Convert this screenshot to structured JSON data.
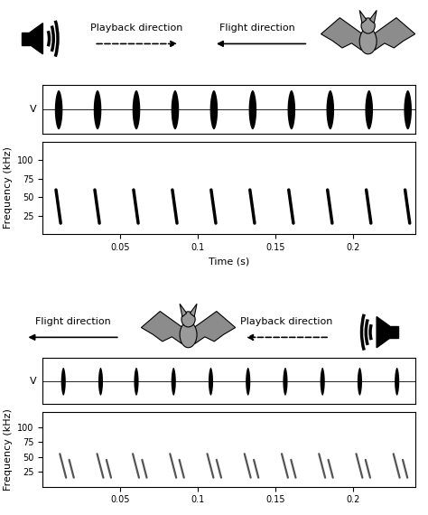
{
  "chart_data": [
    {
      "type": "waveform",
      "ylabel": "V",
      "tick_labels": false,
      "xlim": [
        0,
        0.24
      ],
      "ylim": [
        -1,
        1
      ],
      "color": "#000000",
      "annotations": [
        {
          "text": "Playback direction",
          "line_style": "dashed"
        },
        {
          "text": "Flight direction",
          "line_style": "solid"
        }
      ],
      "pulses": [
        {
          "time": 0.01,
          "duration": 0.005,
          "amplitude": 0.8
        },
        {
          "time": 0.035,
          "duration": 0.005,
          "amplitude": 0.8
        },
        {
          "time": 0.06,
          "duration": 0.005,
          "amplitude": 0.8
        },
        {
          "time": 0.085,
          "duration": 0.005,
          "amplitude": 0.8
        },
        {
          "time": 0.11,
          "duration": 0.005,
          "amplitude": 0.8
        },
        {
          "time": 0.135,
          "duration": 0.005,
          "amplitude": 0.8
        },
        {
          "time": 0.16,
          "duration": 0.005,
          "amplitude": 0.8
        },
        {
          "time": 0.185,
          "duration": 0.005,
          "amplitude": 0.8
        },
        {
          "time": 0.21,
          "duration": 0.005,
          "amplitude": 0.8
        },
        {
          "time": 0.235,
          "duration": 0.005,
          "amplitude": 0.8
        }
      ]
    },
    {
      "type": "spectrogram",
      "ylabel": "Frequency (kHz)",
      "xlabel": "Time (s)",
      "xlim": [
        0,
        0.24
      ],
      "ylim": [
        0,
        125
      ],
      "xticks": [
        0.05,
        0.1,
        0.15,
        0.2
      ],
      "yticks": [
        25,
        50,
        75,
        100
      ],
      "color": "#000000",
      "calls": [
        {
          "start_time": 0.0085,
          "end_time": 0.0115,
          "start_freq": 60,
          "end_freq": 15
        },
        {
          "start_time": 0.0335,
          "end_time": 0.0365,
          "start_freq": 60,
          "end_freq": 15
        },
        {
          "start_time": 0.0585,
          "end_time": 0.0615,
          "start_freq": 60,
          "end_freq": 15
        },
        {
          "start_time": 0.0835,
          "end_time": 0.0865,
          "start_freq": 60,
          "end_freq": 15
        },
        {
          "start_time": 0.1085,
          "end_time": 0.1115,
          "start_freq": 60,
          "end_freq": 15
        },
        {
          "start_time": 0.1335,
          "end_time": 0.1365,
          "start_freq": 60,
          "end_freq": 15
        },
        {
          "start_time": 0.1585,
          "end_time": 0.1615,
          "start_freq": 60,
          "end_freq": 15
        },
        {
          "start_time": 0.1835,
          "end_time": 0.1865,
          "start_freq": 60,
          "end_freq": 15
        },
        {
          "start_time": 0.2085,
          "end_time": 0.2115,
          "start_freq": 60,
          "end_freq": 15
        },
        {
          "start_time": 0.2335,
          "end_time": 0.2365,
          "start_freq": 60,
          "end_freq": 15
        }
      ]
    },
    {
      "type": "waveform",
      "ylabel": "V",
      "tick_labels": false,
      "xlim": [
        0,
        0.24
      ],
      "ylim": [
        -1,
        1
      ],
      "color": "#000000",
      "annotations": [
        {
          "text": "Flight direction",
          "line_style": "solid"
        },
        {
          "text": "Playback direction",
          "line_style": "dashed"
        }
      ],
      "pulses": [
        {
          "time": 0.013,
          "duration": 0.003,
          "amplitude": 0.6
        },
        {
          "time": 0.037,
          "duration": 0.003,
          "amplitude": 0.6
        },
        {
          "time": 0.06,
          "duration": 0.003,
          "amplitude": 0.6
        },
        {
          "time": 0.084,
          "duration": 0.003,
          "amplitude": 0.6
        },
        {
          "time": 0.108,
          "duration": 0.003,
          "amplitude": 0.6
        },
        {
          "time": 0.132,
          "duration": 0.003,
          "amplitude": 0.6
        },
        {
          "time": 0.156,
          "duration": 0.003,
          "amplitude": 0.6
        },
        {
          "time": 0.18,
          "duration": 0.003,
          "amplitude": 0.6
        },
        {
          "time": 0.204,
          "duration": 0.003,
          "amplitude": 0.6
        },
        {
          "time": 0.228,
          "duration": 0.003,
          "amplitude": 0.6
        }
      ]
    },
    {
      "type": "spectrogram",
      "ylabel": "Frequency (kHz)",
      "xlim": [
        0,
        0.24
      ],
      "ylim": [
        0,
        125
      ],
      "xticks": [
        0.05,
        0.1,
        0.15,
        0.2
      ],
      "yticks": [
        25,
        50,
        75,
        100
      ],
      "color": "#555555",
      "calls": [
        {
          "start_time": 0.011,
          "end_time": 0.015,
          "start_freq": 55,
          "end_freq": 15
        },
        {
          "start_time": 0.017,
          "end_time": 0.02,
          "start_freq": 45,
          "end_freq": 15
        },
        {
          "start_time": 0.035,
          "end_time": 0.039,
          "start_freq": 55,
          "end_freq": 15
        },
        {
          "start_time": 0.041,
          "end_time": 0.044,
          "start_freq": 45,
          "end_freq": 15
        },
        {
          "start_time": 0.058,
          "end_time": 0.062,
          "start_freq": 55,
          "end_freq": 15
        },
        {
          "start_time": 0.064,
          "end_time": 0.067,
          "start_freq": 45,
          "end_freq": 15
        },
        {
          "start_time": 0.082,
          "end_time": 0.086,
          "start_freq": 55,
          "end_freq": 15
        },
        {
          "start_time": 0.088,
          "end_time": 0.091,
          "start_freq": 45,
          "end_freq": 15
        },
        {
          "start_time": 0.106,
          "end_time": 0.11,
          "start_freq": 55,
          "end_freq": 15
        },
        {
          "start_time": 0.112,
          "end_time": 0.115,
          "start_freq": 45,
          "end_freq": 15
        },
        {
          "start_time": 0.13,
          "end_time": 0.134,
          "start_freq": 55,
          "end_freq": 15
        },
        {
          "start_time": 0.136,
          "end_time": 0.139,
          "start_freq": 45,
          "end_freq": 15
        },
        {
          "start_time": 0.154,
          "end_time": 0.158,
          "start_freq": 55,
          "end_freq": 15
        },
        {
          "start_time": 0.16,
          "end_time": 0.163,
          "start_freq": 45,
          "end_freq": 15
        },
        {
          "start_time": 0.178,
          "end_time": 0.182,
          "start_freq": 55,
          "end_freq": 15
        },
        {
          "start_time": 0.184,
          "end_time": 0.187,
          "start_freq": 45,
          "end_freq": 15
        },
        {
          "start_time": 0.202,
          "end_time": 0.206,
          "start_freq": 55,
          "end_freq": 15
        },
        {
          "start_time": 0.208,
          "end_time": 0.211,
          "start_freq": 45,
          "end_freq": 15
        },
        {
          "start_time": 0.226,
          "end_time": 0.23,
          "start_freq": 55,
          "end_freq": 15
        },
        {
          "start_time": 0.232,
          "end_time": 0.235,
          "start_freq": 45,
          "end_freq": 15
        }
      ]
    }
  ]
}
